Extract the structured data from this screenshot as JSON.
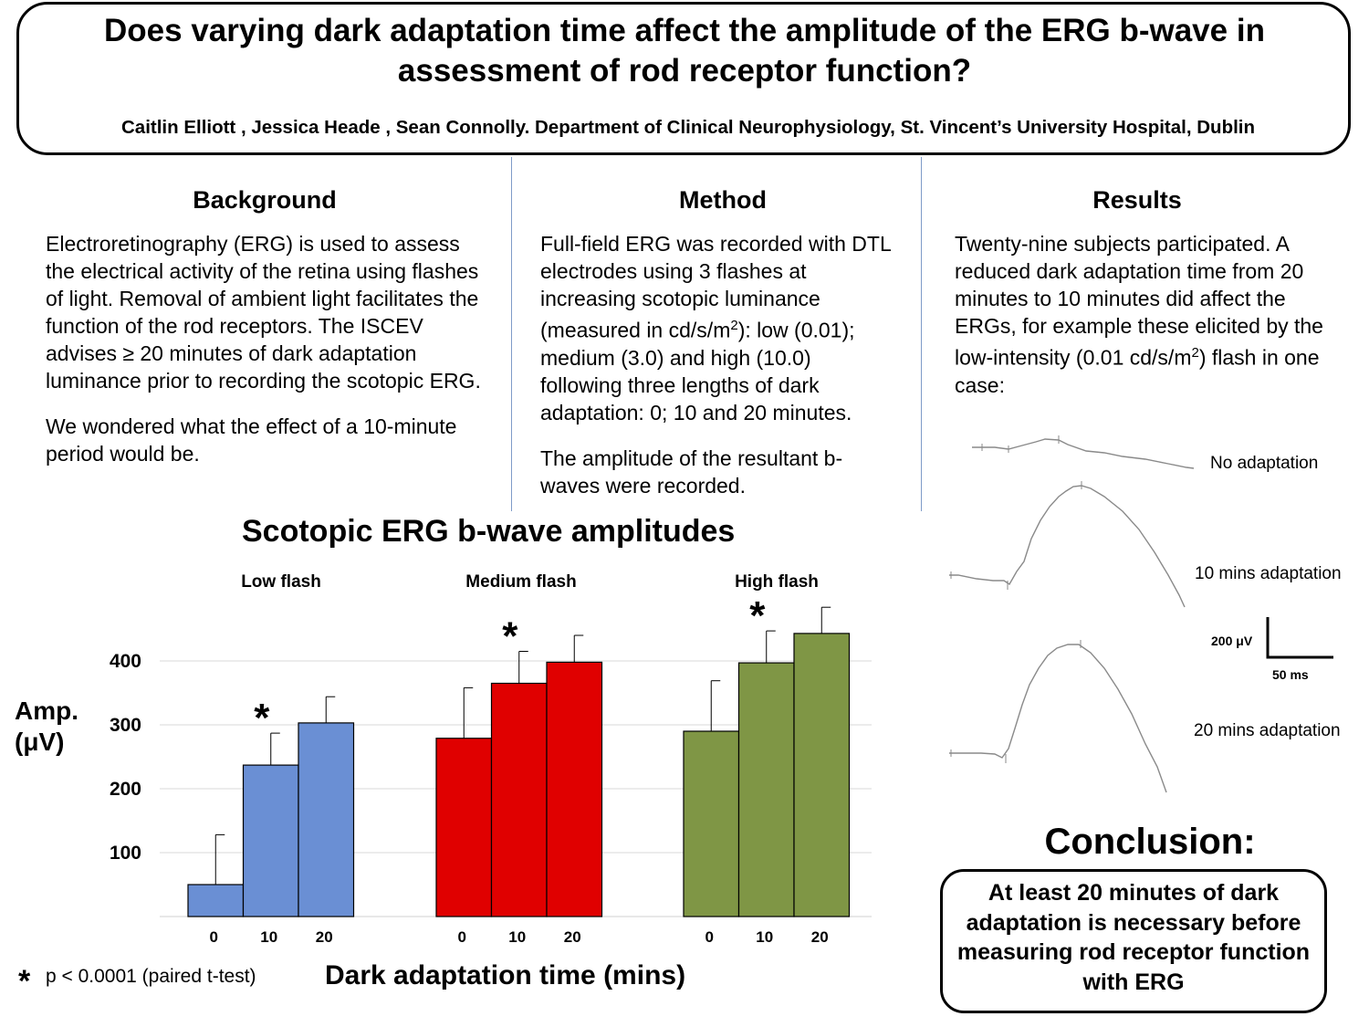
{
  "header": {
    "title": "Does varying dark adaptation time affect the amplitude of the ERG b-wave in assessment of rod receptor function?",
    "authors": "Caitlin Elliott , Jessica Heade , Sean Connolly.  Department of Clinical Neurophysiology, St. Vincent’s University Hospital, Dublin"
  },
  "background": {
    "heading": "Background",
    "para1": "Electroretinography (ERG) is used to assess the electrical activity of the retina using flashes of light. Removal of ambient light facilitates the function of the rod receptors. The ISCEV advises ≥ 20 minutes of dark adaptation luminance prior to recording the scotopic ERG.",
    "para2": "We wondered what the effect of a 10-minute period would be."
  },
  "method": {
    "heading": "Method",
    "para1_a": "Full-field ERG was recorded with DTL electrodes using 3 flashes at increasing scotopic luminance (measured in cd/s/m",
    "sup": "2",
    "para1_b": "): low (0.01); medium (3.0) and high (10.0) following three lengths of dark adaptation: 0; 10 and 20 minutes.",
    "para2": "The amplitude of the resultant b-waves were recorded."
  },
  "results": {
    "heading": "Results",
    "para_a": "Twenty-nine subjects participated. A reduced dark adaptation time from 20 minutes to 10 minutes did affect the ERGs, for example these elicited by the low-intensity (0.01 cd/s/m",
    "sup": "2",
    "para_b": ") flash in one case:",
    "traces": [
      {
        "label": "No adaptation"
      },
      {
        "label": "10 mins adaptation"
      },
      {
        "label": "20 mins adaptation"
      }
    ],
    "scale_v": "200 μV",
    "scale_t": "50 ms"
  },
  "chart_data": {
    "type": "bar",
    "title": "Scotopic ERG b-wave amplitudes",
    "ylabel_line1": "Amp.",
    "ylabel_line2": "(μV)",
    "xlabel": "Dark adaptation time (mins)",
    "ylim": [
      0,
      450
    ],
    "yticks": [
      100,
      200,
      300,
      400
    ],
    "grid": true,
    "groups": [
      {
        "name": "Low flash",
        "color": "#6a8fd4",
        "categories": [
          "0",
          "10",
          "20"
        ],
        "values": [
          50,
          237,
          303
        ],
        "errors": [
          78,
          50,
          41
        ],
        "significance": "*"
      },
      {
        "name": "Medium flash",
        "color": "#e00000",
        "categories": [
          "0",
          "10",
          "20"
        ],
        "values": [
          279,
          365,
          398
        ],
        "errors": [
          79,
          50,
          42
        ],
        "significance": "*"
      },
      {
        "name": "High flash",
        "color": "#7f9645",
        "categories": [
          "0",
          "10",
          "20"
        ],
        "values": [
          290,
          397,
          443
        ],
        "errors": [
          79,
          50,
          41
        ],
        "significance": "*"
      }
    ],
    "footnote_symbol": "*",
    "footnote": "p < 0.0001 (paired t-test)"
  },
  "conclusion": {
    "heading": "Conclusion:",
    "text": "At least 20 minutes of dark adaptation is necessary before measuring rod receptor function with ERG"
  }
}
